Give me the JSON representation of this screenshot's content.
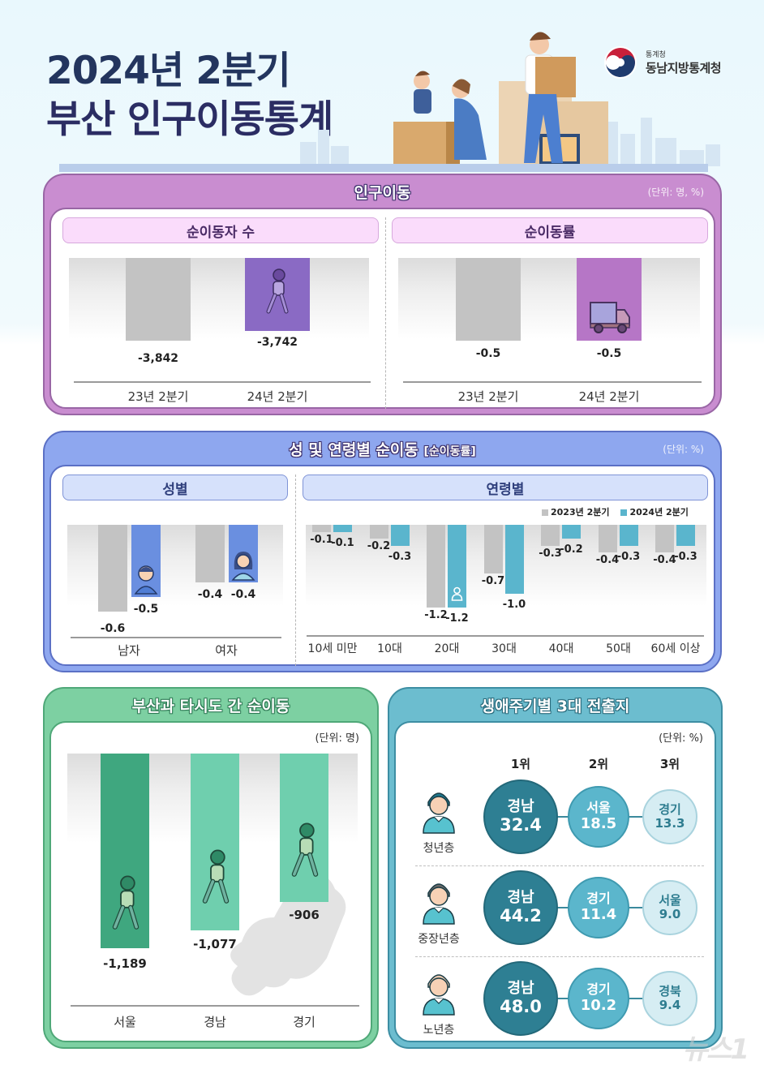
{
  "header": {
    "title_line1": "2024년 2분기",
    "title_line2": "부산 인구이동통계",
    "org_small": "통계청",
    "org_name": "동남지방통계청"
  },
  "sections": {
    "population_movement": {
      "title": "인구이동",
      "unit": "(단위: 명, %)",
      "net_migrants": {
        "title": "순이동자 수",
        "bars": [
          {
            "label": "23년 2분기",
            "value": "-3,842"
          },
          {
            "label": "24년 2분기",
            "value": "-3,742"
          }
        ]
      },
      "net_migration_rate": {
        "title": "순이동률",
        "bars": [
          {
            "label": "23년 2분기",
            "value": "-0.5"
          },
          {
            "label": "24년 2분기",
            "value": "-0.5"
          }
        ]
      }
    },
    "sex_age": {
      "title": "성 및 연령별 순이동",
      "title_suffix": "[순이동률]",
      "unit": "(단위: %)",
      "by_sex": {
        "title": "성별",
        "groups": [
          {
            "label": "남자",
            "v2023": "-0.6",
            "v2024": "-0.5"
          },
          {
            "label": "여자",
            "v2023": "-0.4",
            "v2024": "-0.4"
          }
        ]
      },
      "by_age": {
        "title": "연령별",
        "legend": [
          "2023년 2분기",
          "2024년 2분기"
        ],
        "groups": [
          {
            "label": "10세 미만",
            "v2023": "-0.1",
            "v2024": "-0.1"
          },
          {
            "label": "10대",
            "v2023": "-0.2",
            "v2024": "-0.3"
          },
          {
            "label": "20대",
            "v2023": "-1.2",
            "v2024": "-1.2"
          },
          {
            "label": "30대",
            "v2023": "-0.7",
            "v2024": "-1.0"
          },
          {
            "label": "40대",
            "v2023": "-0.3",
            "v2024": "-0.2"
          },
          {
            "label": "50대",
            "v2023": "-0.4",
            "v2024": "-0.3"
          },
          {
            "label": "60세 이상",
            "v2023": "-0.4",
            "v2024": "-0.3"
          }
        ]
      }
    },
    "inter_region": {
      "title": "부산과 타시도 간 순이동",
      "unit": "(단위: 명)",
      "bars": [
        {
          "label": "서울",
          "value": "-1,189"
        },
        {
          "label": "경남",
          "value": "-1,077"
        },
        {
          "label": "경기",
          "value": "-906"
        }
      ]
    },
    "life_cycle": {
      "title": "생애주기별 3대 전출지",
      "unit": "(단위: %)",
      "ranks": [
        "1위",
        "2위",
        "3위"
      ],
      "rows": [
        {
          "label": "청년층",
          "items": [
            {
              "name": "경남",
              "pct": "32.4"
            },
            {
              "name": "서울",
              "pct": "18.5"
            },
            {
              "name": "경기",
              "pct": "13.3"
            }
          ]
        },
        {
          "label": "중장년층",
          "items": [
            {
              "name": "경남",
              "pct": "44.2"
            },
            {
              "name": "경기",
              "pct": "11.4"
            },
            {
              "name": "서울",
              "pct": "9.0"
            }
          ]
        },
        {
          "label": "노년층",
          "items": [
            {
              "name": "경남",
              "pct": "48.0"
            },
            {
              "name": "경기",
              "pct": "10.2"
            },
            {
              "name": "경북",
              "pct": "9.4"
            }
          ]
        }
      ]
    }
  },
  "colors": {
    "gray_bar": "#c3c3c3",
    "purple_bar": "#8a6ac4",
    "magenta_bar": "#b676c6",
    "blue_bar": "#6a8fe0",
    "teal_bar": "#5ab5cd",
    "green_dark": "#3fa77f",
    "green_light": "#6fcfae"
  },
  "watermark": "뉴스1",
  "chart_data": [
    {
      "type": "bar",
      "title": "순이동자 수",
      "categories": [
        "23년 2분기",
        "24년 2분기"
      ],
      "values": [
        -3842,
        -3742
      ],
      "ylabel": "명"
    },
    {
      "type": "bar",
      "title": "순이동률",
      "categories": [
        "23년 2분기",
        "24년 2분기"
      ],
      "values": [
        -0.5,
        -0.5
      ],
      "ylabel": "%"
    },
    {
      "type": "bar",
      "title": "성별 순이동률",
      "categories": [
        "남자",
        "여자"
      ],
      "series": [
        {
          "name": "2023년 2분기",
          "values": [
            -0.6,
            -0.4
          ]
        },
        {
          "name": "2024년 2분기",
          "values": [
            -0.5,
            -0.4
          ]
        }
      ],
      "ylabel": "%"
    },
    {
      "type": "bar",
      "title": "연령별 순이동률",
      "categories": [
        "10세 미만",
        "10대",
        "20대",
        "30대",
        "40대",
        "50대",
        "60세 이상"
      ],
      "series": [
        {
          "name": "2023년 2분기",
          "values": [
            -0.1,
            -0.2,
            -1.2,
            -0.7,
            -0.3,
            -0.4,
            -0.4
          ]
        },
        {
          "name": "2024년 2분기",
          "values": [
            -0.1,
            -0.3,
            -1.2,
            -1.0,
            -0.2,
            -0.3,
            -0.3
          ]
        }
      ],
      "legend_position": "top-right",
      "ylabel": "%"
    },
    {
      "type": "bar",
      "title": "부산과 타시도 간 순이동",
      "categories": [
        "서울",
        "경남",
        "경기"
      ],
      "values": [
        -1189,
        -1077,
        -906
      ],
      "ylabel": "명"
    },
    {
      "type": "table",
      "title": "생애주기별 3대 전출지 (%)",
      "columns": [
        "",
        "1위",
        "2위",
        "3위"
      ],
      "rows": [
        [
          "청년층",
          "경남 32.4",
          "서울 18.5",
          "경기 13.3"
        ],
        [
          "중장년층",
          "경남 44.2",
          "경기 11.4",
          "서울 9.0"
        ],
        [
          "노년층",
          "경남 48.0",
          "경기 10.2",
          "경북 9.4"
        ]
      ]
    }
  ]
}
